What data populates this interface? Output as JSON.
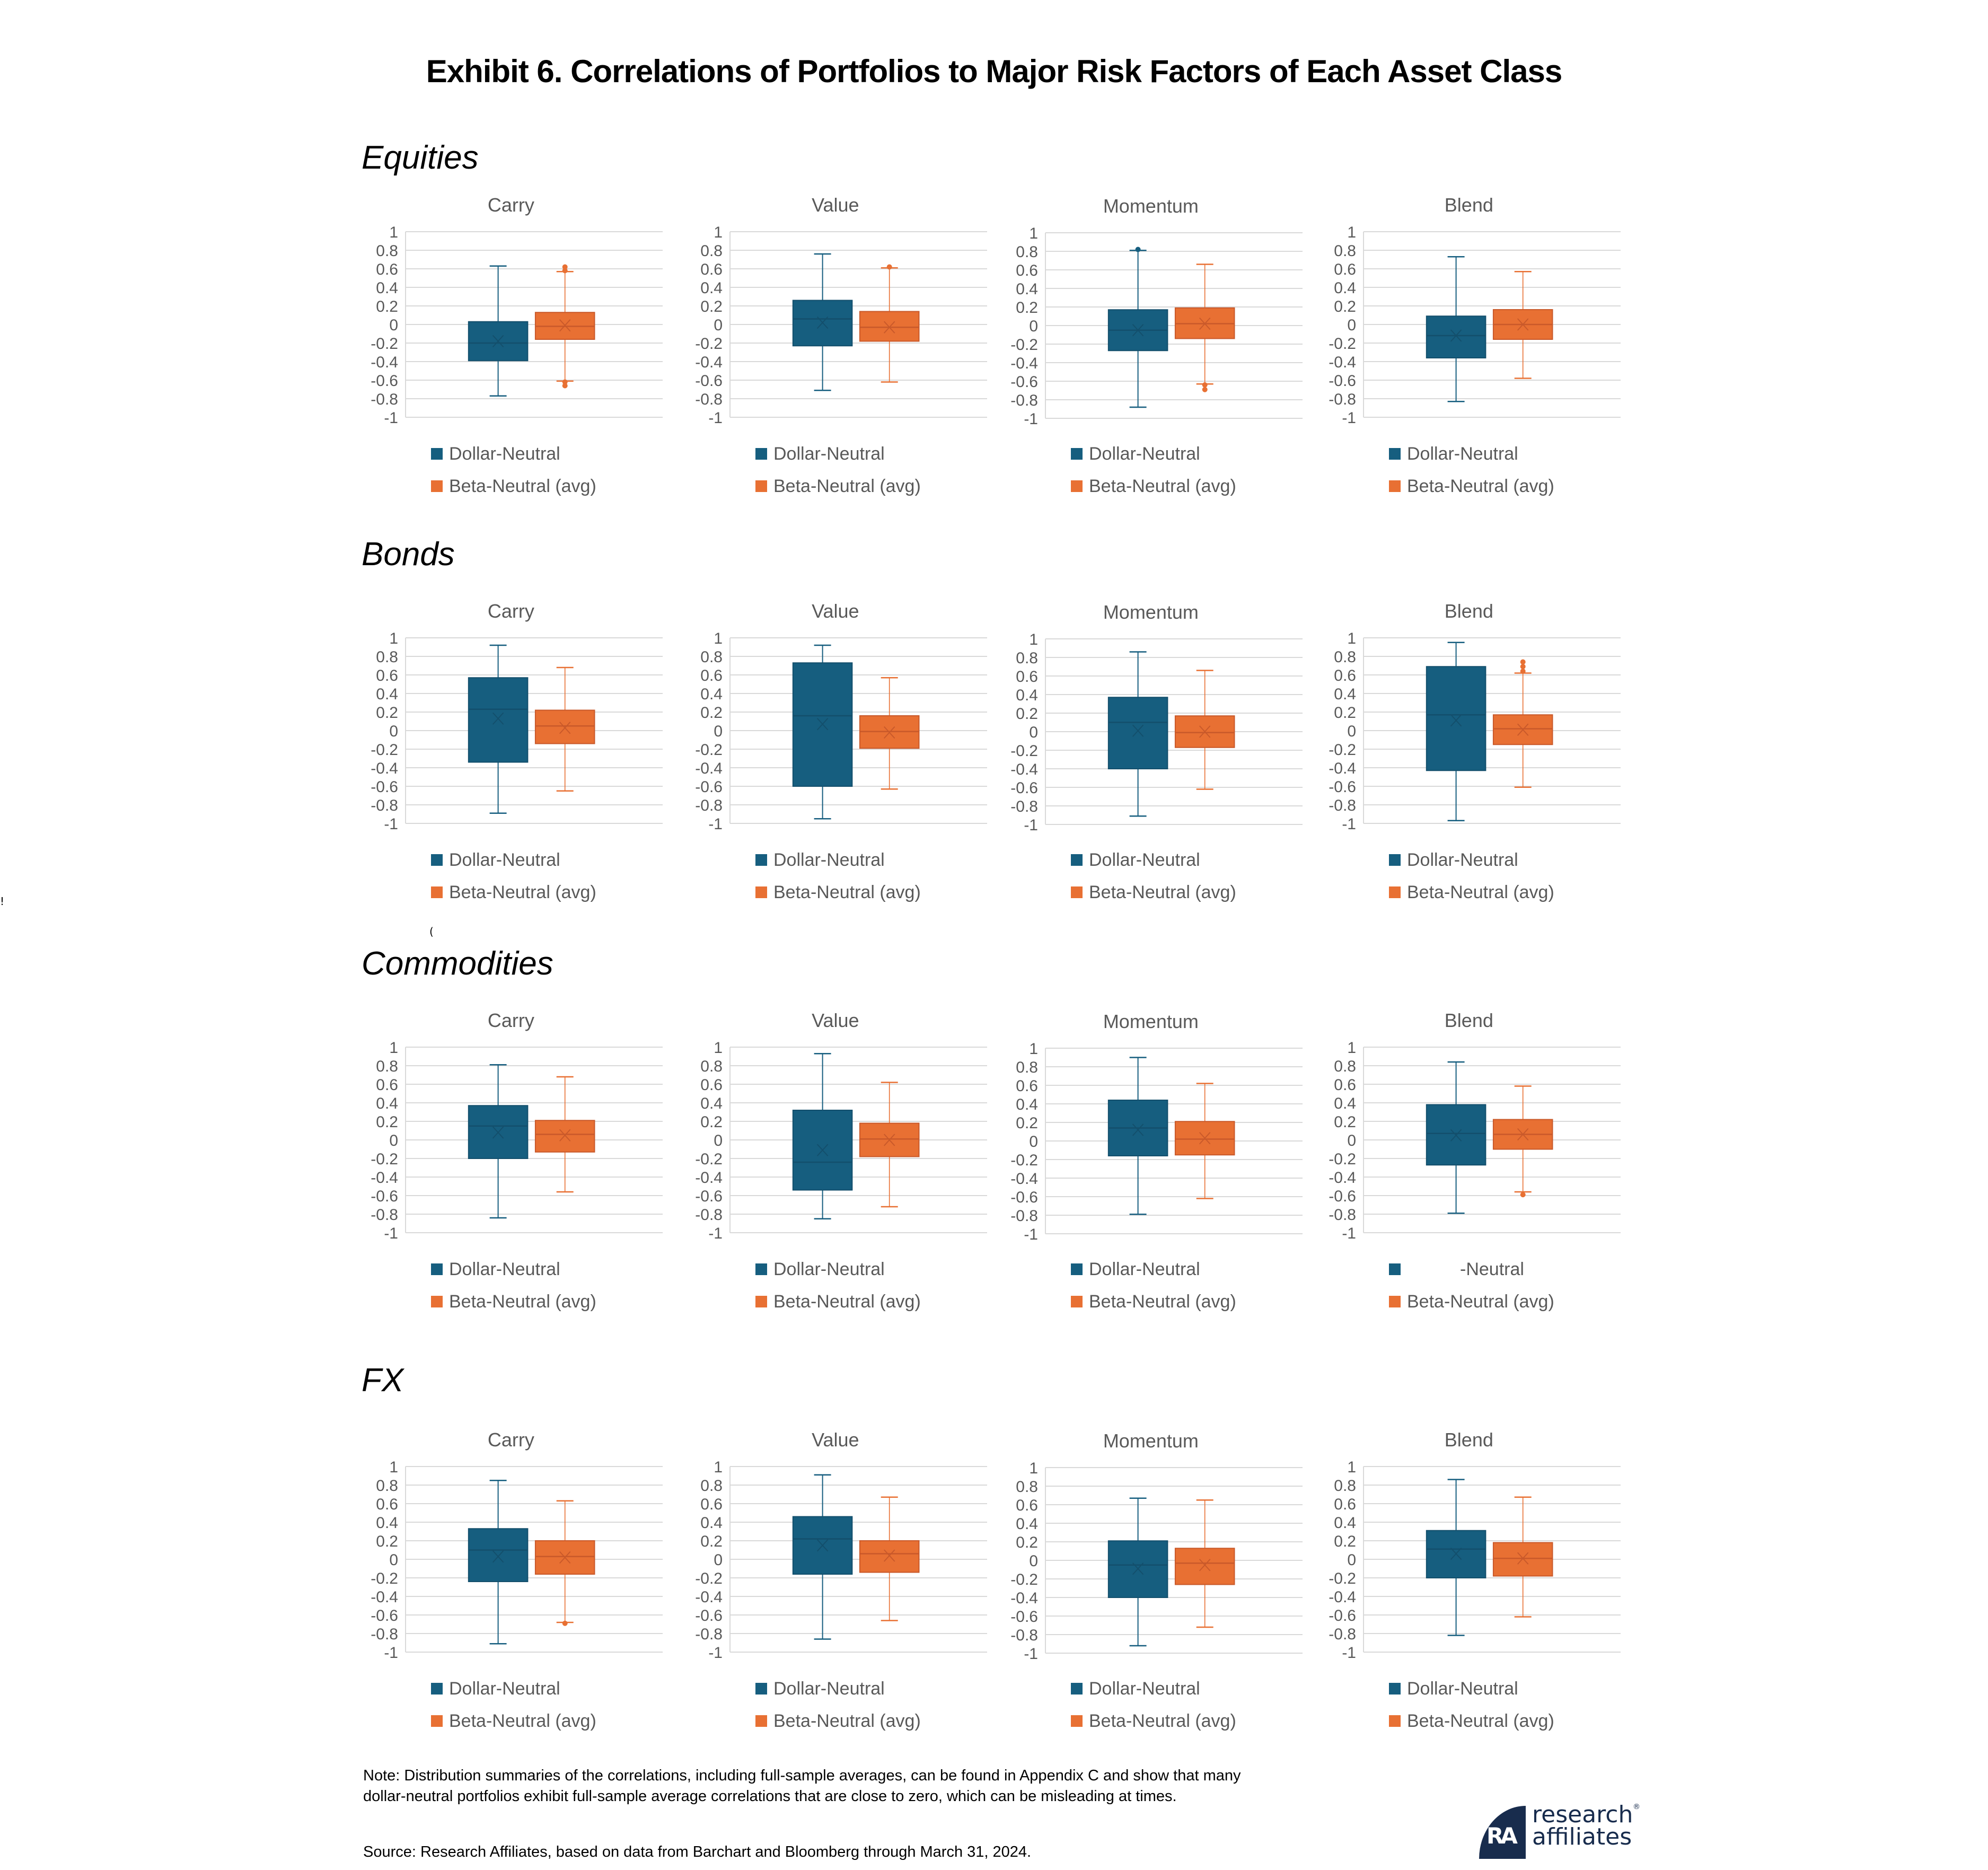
{
  "title": "Exhibit 6. Correlations of Portfolios to Major Risk Factors of Each Asset Class",
  "colors": {
    "dollar_neutral": "#165e7f",
    "beta_neutral": "#e87033",
    "grid": "#d9d9d9",
    "axis_text": "#595959"
  },
  "legend": {
    "dollar_neutral": "Dollar-Neutral",
    "beta_neutral": "Beta-Neutral (avg)"
  },
  "footer": {
    "note_line1": "Note: Distribution summaries of the correlations, including full-sample averages, can be found in Appendix C and show that many",
    "note_line2": "dollar-neutral portfolios exhibit full-sample average correlations that are close to zero, which can be misleading at times.",
    "source": "Source: Research Affiliates, based on data from Barchart and Bloomberg through March 31, 2024.",
    "logo_line1": "research",
    "logo_line2": "affiliates",
    "logo_reg": "®",
    "logo_mark": "RA"
  },
  "stray_marks": [
    "!",
    "("
  ],
  "chart_data": {
    "type": "box",
    "ylim": [
      -1,
      1
    ],
    "yticks": [
      "1",
      "0.8",
      "0.6",
      "0.4",
      "0.2",
      "0",
      "-0.2",
      "-0.4",
      "-0.6",
      "-0.8",
      "-1"
    ],
    "ytick_values": [
      1,
      0.8,
      0.6,
      0.4,
      0.2,
      0,
      -0.2,
      -0.4,
      -0.6,
      -0.8,
      -1
    ],
    "grid": true,
    "series_names": [
      "Dollar-Neutral",
      "Beta-Neutral (avg)"
    ],
    "legend_placement": "bottom",
    "sections": [
      {
        "label": "Equities",
        "charts": [
          {
            "title": "Carry",
            "dollar_neutral": {
              "whisker_high": 0.63,
              "q3": 0.03,
              "median": -0.2,
              "mean": -0.18,
              "q1": -0.39,
              "whisker_low": -0.77,
              "outliers": []
            },
            "beta_neutral": {
              "whisker_high": 0.57,
              "q3": 0.13,
              "median": -0.02,
              "mean": -0.01,
              "q1": -0.16,
              "whisker_low": -0.61,
              "outliers": [
                0.62,
                0.58,
                -0.62,
                -0.66
              ]
            },
            "legend_dollar_label": "Dollar-Neutral"
          },
          {
            "title": "Value",
            "dollar_neutral": {
              "whisker_high": 0.76,
              "q3": 0.26,
              "median": 0.06,
              "mean": 0.02,
              "q1": -0.23,
              "whisker_low": -0.71,
              "outliers": []
            },
            "beta_neutral": {
              "whisker_high": 0.61,
              "q3": 0.14,
              "median": -0.03,
              "mean": -0.03,
              "q1": -0.18,
              "whisker_low": -0.62,
              "outliers": [
                0.62
              ]
            },
            "legend_dollar_label": "Dollar-Neutral"
          },
          {
            "title": "Momentum",
            "dollar_neutral": {
              "whisker_high": 0.81,
              "q3": 0.17,
              "median": -0.05,
              "mean": -0.05,
              "q1": -0.27,
              "whisker_low": -0.88,
              "outliers": [
                0.82
              ]
            },
            "beta_neutral": {
              "whisker_high": 0.66,
              "q3": 0.19,
              "median": 0.02,
              "mean": 0.02,
              "q1": -0.14,
              "whisker_low": -0.63,
              "outliers": [
                -0.64,
                -0.69
              ]
            },
            "legend_dollar_label": "Dollar-Neutral"
          },
          {
            "title": "Blend",
            "dollar_neutral": {
              "whisker_high": 0.73,
              "q3": 0.09,
              "median": -0.12,
              "mean": -0.12,
              "q1": -0.36,
              "whisker_low": -0.83,
              "outliers": []
            },
            "beta_neutral": {
              "whisker_high": 0.57,
              "q3": 0.16,
              "median": 0.0,
              "mean": 0.0,
              "q1": -0.16,
              "whisker_low": -0.58,
              "outliers": []
            },
            "legend_dollar_label": "Dollar-Neutral"
          }
        ]
      },
      {
        "label": "Bonds",
        "charts": [
          {
            "title": "Carry",
            "dollar_neutral": {
              "whisker_high": 0.92,
              "q3": 0.57,
              "median": 0.23,
              "mean": 0.13,
              "q1": -0.34,
              "whisker_low": -0.89,
              "outliers": []
            },
            "beta_neutral": {
              "whisker_high": 0.68,
              "q3": 0.22,
              "median": 0.05,
              "mean": 0.03,
              "q1": -0.14,
              "whisker_low": -0.65,
              "outliers": []
            },
            "legend_dollar_label": "Dollar-Neutral"
          },
          {
            "title": "Value",
            "dollar_neutral": {
              "whisker_high": 0.92,
              "q3": 0.73,
              "median": 0.16,
              "mean": 0.07,
              "q1": -0.6,
              "whisker_low": -0.95,
              "outliers": []
            },
            "beta_neutral": {
              "whisker_high": 0.57,
              "q3": 0.16,
              "median": -0.01,
              "mean": -0.02,
              "q1": -0.19,
              "whisker_low": -0.63,
              "outliers": []
            },
            "legend_dollar_label": "Dollar-Neutral"
          },
          {
            "title": "Momentum",
            "dollar_neutral": {
              "whisker_high": 0.86,
              "q3": 0.37,
              "median": 0.1,
              "mean": 0.01,
              "q1": -0.4,
              "whisker_low": -0.91,
              "outliers": []
            },
            "beta_neutral": {
              "whisker_high": 0.66,
              "q3": 0.17,
              "median": -0.01,
              "mean": 0.0,
              "q1": -0.17,
              "whisker_low": -0.62,
              "outliers": []
            },
            "legend_dollar_label": "Dollar-Neutral"
          },
          {
            "title": "Blend",
            "dollar_neutral": {
              "whisker_high": 0.95,
              "q3": 0.69,
              "median": 0.17,
              "mean": 0.11,
              "q1": -0.43,
              "whisker_low": -0.97,
              "outliers": []
            },
            "beta_neutral": {
              "whisker_high": 0.62,
              "q3": 0.17,
              "median": 0.02,
              "mean": 0.01,
              "q1": -0.15,
              "whisker_low": -0.61,
              "outliers": [
                0.64,
                0.69,
                0.74
              ]
            },
            "legend_dollar_label": "Dollar-Neutral"
          }
        ]
      },
      {
        "label": "Commodities",
        "charts": [
          {
            "title": "Carry",
            "dollar_neutral": {
              "whisker_high": 0.81,
              "q3": 0.37,
              "median": 0.15,
              "mean": 0.08,
              "q1": -0.2,
              "whisker_low": -0.84,
              "outliers": []
            },
            "beta_neutral": {
              "whisker_high": 0.68,
              "q3": 0.21,
              "median": 0.06,
              "mean": 0.05,
              "q1": -0.13,
              "whisker_low": -0.56,
              "outliers": []
            },
            "legend_dollar_label": "Dollar-Neutral"
          },
          {
            "title": "Value",
            "dollar_neutral": {
              "whisker_high": 0.93,
              "q3": 0.32,
              "median": -0.24,
              "mean": -0.11,
              "q1": -0.54,
              "whisker_low": -0.85,
              "outliers": []
            },
            "beta_neutral": {
              "whisker_high": 0.62,
              "q3": 0.18,
              "median": 0.01,
              "mean": 0.0,
              "q1": -0.18,
              "whisker_low": -0.72,
              "outliers": []
            },
            "legend_dollar_label": "Dollar-Neutral"
          },
          {
            "title": "Momentum",
            "dollar_neutral": {
              "whisker_high": 0.9,
              "q3": 0.44,
              "median": 0.14,
              "mean": 0.12,
              "q1": -0.16,
              "whisker_low": -0.79,
              "outliers": []
            },
            "beta_neutral": {
              "whisker_high": 0.62,
              "q3": 0.21,
              "median": 0.02,
              "mean": 0.03,
              "q1": -0.15,
              "whisker_low": -0.62,
              "outliers": []
            },
            "legend_dollar_label": "Dollar-Neutral"
          },
          {
            "title": "Blend",
            "dollar_neutral": {
              "whisker_high": 0.84,
              "q3": 0.38,
              "median": 0.07,
              "mean": 0.05,
              "q1": -0.27,
              "whisker_low": -0.79,
              "outliers": []
            },
            "beta_neutral": {
              "whisker_high": 0.58,
              "q3": 0.22,
              "median": 0.06,
              "mean": 0.06,
              "q1": -0.1,
              "whisker_low": -0.56,
              "outliers": [
                -0.59
              ]
            },
            "legend_dollar_label": "-Neutral"
          }
        ]
      },
      {
        "label": "FX",
        "charts": [
          {
            "title": "Carry",
            "dollar_neutral": {
              "whisker_high": 0.85,
              "q3": 0.33,
              "median": 0.1,
              "mean": 0.03,
              "q1": -0.24,
              "whisker_low": -0.91,
              "outliers": []
            },
            "beta_neutral": {
              "whisker_high": 0.63,
              "q3": 0.2,
              "median": 0.03,
              "mean": 0.02,
              "q1": -0.16,
              "whisker_low": -0.68,
              "outliers": [
                -0.69
              ]
            },
            "legend_dollar_label": "Dollar-Neutral"
          },
          {
            "title": "Value",
            "dollar_neutral": {
              "whisker_high": 0.91,
              "q3": 0.46,
              "median": 0.22,
              "mean": 0.15,
              "q1": -0.16,
              "whisker_low": -0.86,
              "outliers": []
            },
            "beta_neutral": {
              "whisker_high": 0.67,
              "q3": 0.2,
              "median": 0.06,
              "mean": 0.04,
              "q1": -0.14,
              "whisker_low": -0.66,
              "outliers": []
            },
            "legend_dollar_label": "Dollar-Neutral"
          },
          {
            "title": "Momentum",
            "dollar_neutral": {
              "whisker_high": 0.67,
              "q3": 0.21,
              "median": -0.05,
              "mean": -0.09,
              "q1": -0.4,
              "whisker_low": -0.92,
              "outliers": []
            },
            "beta_neutral": {
              "whisker_high": 0.65,
              "q3": 0.13,
              "median": -0.03,
              "mean": -0.05,
              "q1": -0.26,
              "whisker_low": -0.72,
              "outliers": []
            },
            "legend_dollar_label": "Dollar-Neutral"
          },
          {
            "title": "Blend",
            "dollar_neutral": {
              "whisker_high": 0.86,
              "q3": 0.31,
              "median": 0.11,
              "mean": 0.06,
              "q1": -0.2,
              "whisker_low": -0.82,
              "outliers": []
            },
            "beta_neutral": {
              "whisker_high": 0.67,
              "q3": 0.18,
              "median": 0.01,
              "mean": 0.01,
              "q1": -0.18,
              "whisker_low": -0.62,
              "outliers": []
            },
            "legend_dollar_label": "Dollar-Neutral"
          }
        ]
      }
    ]
  }
}
